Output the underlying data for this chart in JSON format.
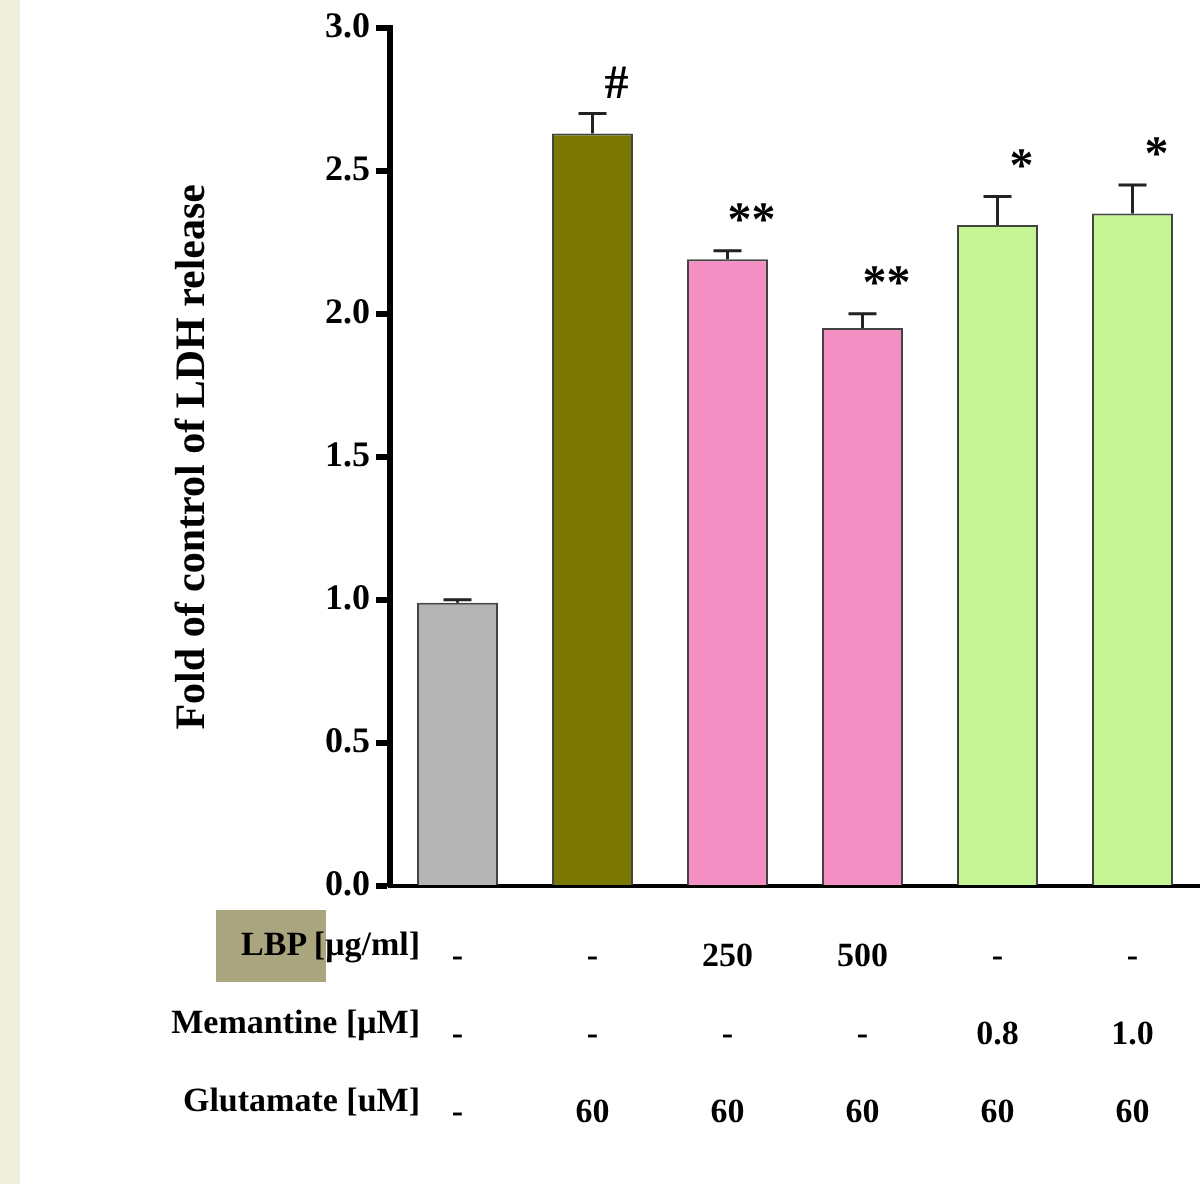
{
  "chart_data": {
    "type": "bar",
    "ylabel": "Fold of control of LDH release",
    "categories": [
      "-\n-\n-",
      "-\n-\n60",
      "250\n-\n60",
      "500\n-\n60",
      "-\n0.8\n60",
      "-\n1.0\n60"
    ],
    "values": [
      0.99,
      2.63,
      2.19,
      1.95,
      2.31,
      2.35
    ],
    "errors": [
      0.01,
      0.07,
      0.03,
      0.05,
      0.1,
      0.1
    ],
    "colors": [
      "#b4b4b4",
      "#7a7800",
      "#f48fc4",
      "#f48fc4",
      "#c4f494",
      "#c4f494"
    ],
    "ylim": [
      0,
      3
    ],
    "yticks": [
      {
        "value": 0,
        "label": "0.0"
      },
      {
        "value": 0.5,
        "label": "0.5"
      },
      {
        "value": 1,
        "label": "1.0"
      },
      {
        "value": 1.5,
        "label": "1.5"
      },
      {
        "value": 2,
        "label": "2.0"
      },
      {
        "value": 2.5,
        "label": "2.5"
      },
      {
        "value": 3,
        "label": "3.0"
      }
    ],
    "grid": false,
    "legend": false,
    "annotations": [
      "#",
      "**",
      "**",
      "*",
      "*",
      "LBP [μg/ml]",
      "Memantine [μM]",
      "Glutamate [uM]"
    ]
  }
}
